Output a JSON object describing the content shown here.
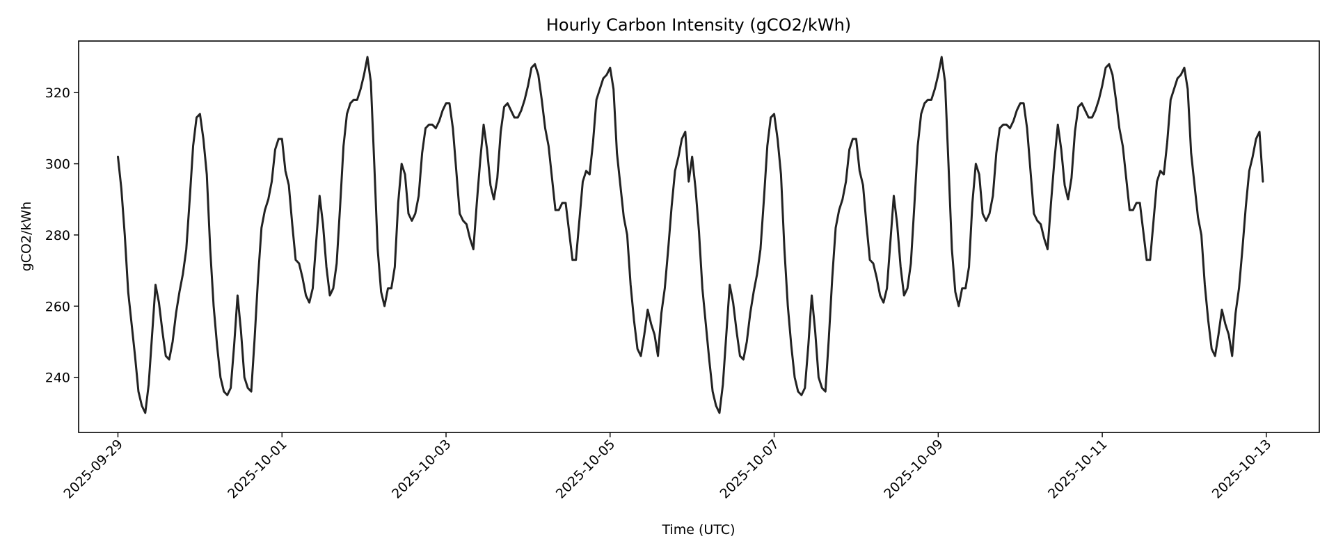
{
  "chart_data": {
    "type": "line",
    "title": "Hourly Carbon Intensity (gCO2/kWh)",
    "xlabel": "Time (UTC)",
    "ylabel": "gCO2/kWh",
    "grid": false,
    "legend": "none",
    "line_color": "#222222",
    "xlim": [
      "2025-09-28 12:30",
      "2025-10-13 15:30"
    ],
    "ylim": [
      224.5,
      334.5
    ],
    "x_ticks": [
      "2025-09-29",
      "2025-10-01",
      "2025-10-03",
      "2025-10-05",
      "2025-10-07",
      "2025-10-09",
      "2025-10-11",
      "2025-10-13"
    ],
    "y_ticks": [
      240,
      260,
      280,
      300,
      320
    ],
    "x_start": "2025-09-29 00:00",
    "x_step_hours": 1,
    "series": [
      {
        "values": [
          302,
          293,
          280,
          264,
          255,
          246,
          236,
          232,
          230,
          238,
          252,
          266,
          261,
          253,
          246,
          245,
          250,
          258,
          264,
          269,
          276,
          290,
          305,
          313,
          314,
          307,
          297,
          276,
          260,
          249,
          240,
          236,
          235,
          237,
          249,
          263,
          253,
          240,
          237,
          236,
          251,
          268,
          282,
          287,
          290,
          295,
          304,
          307,
          307,
          298,
          294,
          283,
          273,
          272,
          268,
          263,
          261,
          265,
          278,
          291,
          283,
          271,
          263,
          265,
          272,
          288,
          305,
          314,
          317,
          318,
          318,
          321,
          325,
          330,
          323,
          300,
          276,
          264,
          260,
          265,
          265,
          271,
          289,
          300,
          297,
          286,
          284,
          286,
          291,
          303,
          310,
          311,
          311,
          310,
          312,
          315,
          317,
          317,
          310,
          298,
          286,
          284,
          283,
          279,
          276,
          289,
          301,
          311,
          304,
          294,
          290,
          296,
          309,
          316,
          317,
          315,
          313,
          313,
          315,
          318,
          322,
          327,
          328,
          325,
          318,
          310,
          305,
          296,
          287,
          287,
          289,
          289,
          281,
          273,
          273,
          284,
          295,
          298,
          297,
          306,
          318,
          321,
          324,
          325,
          327,
          321,
          303,
          294,
          285,
          280,
          266,
          256,
          248,
          246,
          252,
          259,
          255,
          252,
          246,
          258,
          265,
          276,
          288,
          298,
          302,
          307,
          309,
          295,
          302,
          293,
          281,
          265,
          255,
          245,
          236,
          232,
          230,
          238,
          252,
          266,
          261,
          253,
          246,
          245,
          250,
          258,
          264,
          269,
          276,
          290,
          305,
          313,
          314,
          307,
          297,
          276,
          260,
          249,
          240,
          236,
          235,
          237,
          249,
          263,
          253,
          240,
          237,
          236,
          251,
          268,
          282,
          287,
          290,
          295,
          304,
          307,
          307,
          298,
          294,
          283,
          273,
          272,
          268,
          263,
          261,
          265,
          278,
          291,
          283,
          271,
          263,
          265,
          272,
          288,
          305,
          314,
          317,
          318,
          318,
          321,
          325,
          330,
          323,
          300,
          276,
          264,
          260,
          265,
          265,
          271,
          289,
          300,
          297,
          286,
          284,
          286,
          291,
          303,
          310,
          311,
          311,
          310,
          312,
          315,
          317,
          317,
          310,
          298,
          286,
          284,
          283,
          279,
          276,
          289,
          301,
          311,
          304,
          294,
          290,
          296,
          309,
          316,
          317,
          315,
          313,
          313,
          315,
          318,
          322,
          327,
          328,
          325,
          318,
          310,
          305,
          296,
          287,
          287,
          289,
          289,
          281,
          273,
          273,
          284,
          295,
          298,
          297,
          306,
          318,
          321,
          324,
          325,
          327,
          321,
          303,
          294,
          285,
          280,
          266,
          256,
          248,
          246,
          252,
          259,
          255,
          252,
          246,
          258,
          265,
          276,
          288,
          298,
          302,
          307,
          309,
          295
        ]
      }
    ]
  }
}
